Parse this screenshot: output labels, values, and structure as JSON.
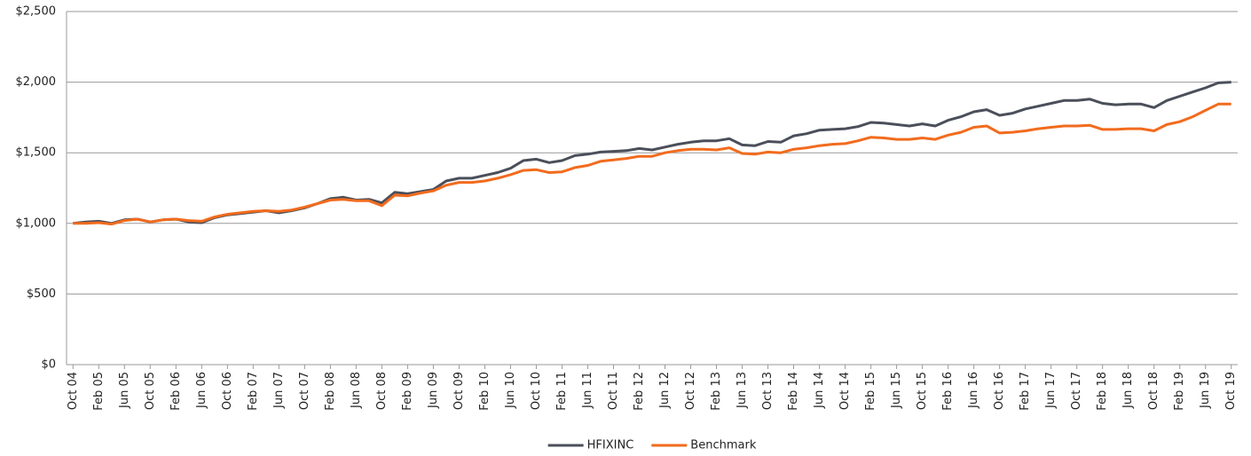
{
  "chart_data": {
    "type": "line",
    "categories": [
      "Oct 04",
      null,
      "Feb 05",
      null,
      "Jun 05",
      null,
      "Oct 05",
      null,
      "Feb 06",
      null,
      "Jun 06",
      null,
      "Oct 06",
      null,
      "Feb 07",
      null,
      "Jun 07",
      null,
      "Oct 07",
      null,
      "Feb 08",
      null,
      "Jun 08",
      null,
      "Oct 08",
      null,
      "Feb 09",
      null,
      "Jun 09",
      null,
      "Oct 09",
      null,
      "Feb 10",
      null,
      "Jun 10",
      null,
      "Oct 10",
      null,
      "Feb 11",
      null,
      "Jun 11",
      null,
      "Oct 11",
      null,
      "Feb 12",
      null,
      "Jun 12",
      null,
      "Oct 12",
      null,
      "Feb 13",
      null,
      "Jun 13",
      null,
      "Oct 13",
      null,
      "Feb 14",
      null,
      "Jun 14",
      null,
      "Oct 14",
      null,
      "Feb 15",
      null,
      "Jun 15",
      null,
      "Oct 15",
      null,
      "Feb 16",
      null,
      "Jun 16",
      null,
      "Oct 16",
      null,
      "Feb 17",
      null,
      "Jun 17",
      null,
      "Oct 17",
      null,
      "Feb 18",
      null,
      "Jun 18",
      null,
      "Oct 18",
      null,
      "Feb 19",
      null,
      "Jun 19",
      null,
      "Oct 19"
    ],
    "series": [
      {
        "name": "HFIXINC",
        "color": "#4a4f5a",
        "values": [
          1000,
          1010,
          1015,
          1000,
          1025,
          1030,
          1010,
          1025,
          1030,
          1010,
          1005,
          1040,
          1060,
          1070,
          1080,
          1090,
          1075,
          1090,
          1110,
          1140,
          1175,
          1185,
          1165,
          1170,
          1145,
          1220,
          1210,
          1225,
          1240,
          1300,
          1320,
          1320,
          1340,
          1360,
          1390,
          1445,
          1455,
          1430,
          1445,
          1480,
          1490,
          1505,
          1510,
          1515,
          1530,
          1520,
          1540,
          1560,
          1575,
          1585,
          1585,
          1600,
          1555,
          1550,
          1580,
          1575,
          1620,
          1635,
          1660,
          1665,
          1670,
          1685,
          1715,
          1710,
          1700,
          1690,
          1705,
          1690,
          1730,
          1755,
          1790,
          1805,
          1765,
          1780,
          1810,
          1830,
          1850,
          1870,
          1870,
          1880,
          1850,
          1840,
          1845,
          1845,
          1820,
          1870,
          1900,
          1930,
          1960,
          1995,
          2000
        ]
      },
      {
        "name": "Benchmark",
        "color": "#f26b1d",
        "values": [
          1000,
          1000,
          1005,
          995,
          1020,
          1030,
          1010,
          1025,
          1030,
          1020,
          1015,
          1045,
          1065,
          1075,
          1085,
          1090,
          1085,
          1095,
          1115,
          1140,
          1165,
          1170,
          1160,
          1160,
          1125,
          1200,
          1195,
          1215,
          1230,
          1270,
          1290,
          1290,
          1300,
          1320,
          1345,
          1375,
          1380,
          1360,
          1365,
          1395,
          1410,
          1440,
          1450,
          1460,
          1475,
          1475,
          1500,
          1515,
          1525,
          1525,
          1520,
          1535,
          1495,
          1490,
          1505,
          1500,
          1525,
          1535,
          1550,
          1560,
          1565,
          1585,
          1610,
          1605,
          1595,
          1595,
          1605,
          1595,
          1625,
          1645,
          1680,
          1690,
          1640,
          1645,
          1655,
          1670,
          1680,
          1690,
          1690,
          1695,
          1665,
          1665,
          1670,
          1670,
          1655,
          1700,
          1720,
          1755,
          1800,
          1845,
          1845
        ]
      }
    ],
    "ylim": [
      0,
      2500
    ],
    "yticks": [
      {
        "value": 0,
        "label": "$0"
      },
      {
        "value": 500,
        "label": "$500"
      },
      {
        "value": 1000,
        "label": "$1,000"
      },
      {
        "value": 1500,
        "label": "$1,500"
      },
      {
        "value": 2000,
        "label": "$2,000"
      },
      {
        "value": 2500,
        "label": "$2,500"
      }
    ],
    "grid": true,
    "legend": "bottom"
  }
}
